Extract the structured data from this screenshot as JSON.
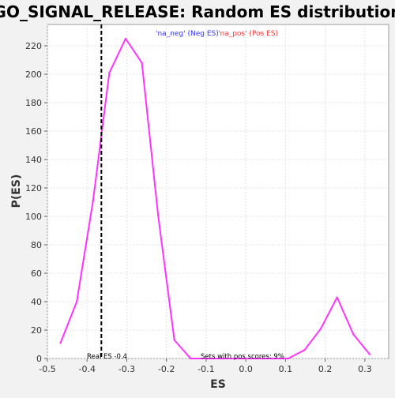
{
  "chart_data": {
    "type": "line",
    "title": "GO_SIGNAL_RELEASE: Random ES distribution",
    "xlabel": "ES",
    "ylabel": "P(ES)",
    "xlim": [
      -0.5,
      0.36
    ],
    "ylim": [
      0,
      235
    ],
    "x_ticks": [
      -0.5,
      -0.4,
      -0.3,
      -0.2,
      -0.1,
      0.0,
      0.1,
      0.2,
      0.3
    ],
    "x_tick_labels": [
      "-0.5",
      "-0.4",
      "-0.3",
      "-0.2",
      "-0.1",
      "0.0",
      "0.1",
      "0.2",
      "0.3"
    ],
    "y_ticks": [
      0,
      20,
      40,
      60,
      80,
      100,
      120,
      140,
      160,
      180,
      200,
      220
    ],
    "y_tick_labels": [
      "0",
      "20",
      "40",
      "60",
      "80",
      "100",
      "120",
      "140",
      "160",
      "180",
      "200",
      "220"
    ],
    "grid": true,
    "series": [
      {
        "color": "#ff33ff",
        "x": [
          -0.467,
          -0.426,
          -0.385,
          -0.344,
          -0.303,
          -0.262,
          -0.221,
          -0.18,
          -0.139,
          -0.098,
          -0.057,
          -0.016,
          0.025,
          0.066,
          0.107,
          0.148,
          0.189,
          0.23,
          0.271,
          0.312
        ],
        "y": [
          11,
          40,
          111,
          201,
          225,
          208,
          101,
          13,
          0,
          0,
          0,
          0,
          0,
          0,
          0,
          6,
          21,
          43,
          17,
          3
        ]
      }
    ],
    "reference_line": {
      "x": -0.364,
      "style": "dashed",
      "color": "#000000"
    },
    "legend": [
      {
        "label": "'na_neg' (Neg ES)",
        "color": "#3333ff"
      },
      {
        "label": "'na_pos' (Pos ES)",
        "color": "#ff3333"
      }
    ],
    "legend_placement": "top-center",
    "annotations": {
      "real_es": "Real ES -0.4",
      "pos_scores": "Sets with pos scores: 9%"
    }
  }
}
